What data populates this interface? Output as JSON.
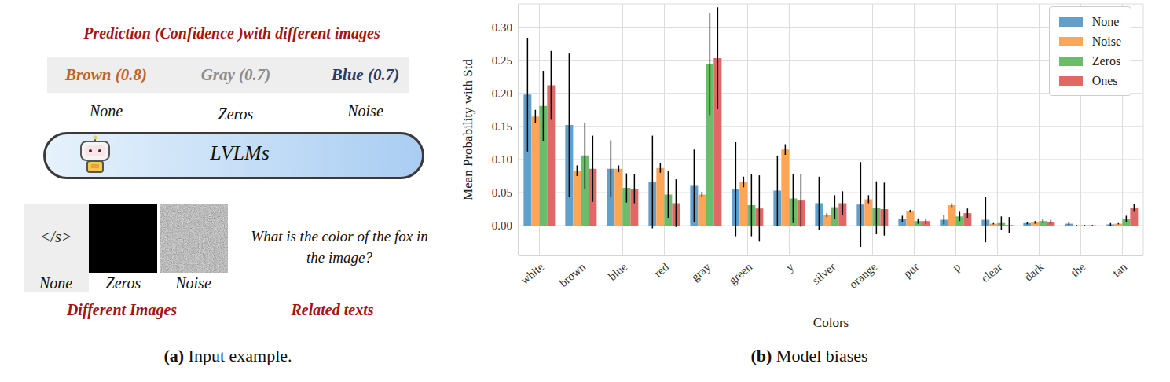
{
  "diagram": {
    "title": "Prediction (Confidence )with different images",
    "predictions": [
      {
        "text": "Brown (0.8)",
        "color": "#c0632b",
        "input": "None"
      },
      {
        "text": "Gray (0.7)",
        "color": "#8c8c8c",
        "input": "Zeros"
      },
      {
        "text": "Blue (0.7)",
        "color": "#2b3a67",
        "input": "Noise"
      }
    ],
    "model": "LVLMs",
    "images": [
      {
        "name": "None",
        "content": "</s>"
      },
      {
        "name": "Zeros"
      },
      {
        "name": "Noise"
      }
    ],
    "question": "What is the color of the fox in the image?",
    "images_label": "Different Images",
    "text_label": "Related texts",
    "caption": {
      "tag": "(a)",
      "text": "Input example."
    }
  },
  "chart_data": {
    "type": "bar",
    "caption": {
      "tag": "(b)",
      "text": "Model biases"
    },
    "x_label": "Colors",
    "y_label": "Mean Probability with Std",
    "categories": [
      "white",
      "brown",
      "blue",
      "red",
      "gray",
      "green",
      "y",
      "silver",
      "orange",
      "pur",
      "p",
      "clear",
      "dark",
      "the",
      "tan"
    ],
    "series": [
      {
        "name": "None",
        "color": "#62a0cb",
        "values": [
          0.198,
          0.152,
          0.086,
          0.066,
          0.06,
          0.055,
          0.053,
          0.034,
          0.032,
          0.01,
          0.009,
          0.009,
          0.004,
          0.003,
          0.002
        ],
        "std": [
          0.086,
          0.108,
          0.043,
          0.07,
          0.055,
          0.071,
          0.053,
          0.04,
          0.064,
          0.005,
          0.007,
          0.034,
          0.002,
          0.002,
          0.002
        ]
      },
      {
        "name": "Noise",
        "color": "#ffa556",
        "values": [
          0.165,
          0.083,
          0.086,
          0.087,
          0.047,
          0.066,
          0.115,
          0.016,
          0.04,
          0.022,
          0.031,
          0.003,
          0.005,
          0.0005,
          0.003
        ],
        "std": [
          0.01,
          0.008,
          0.005,
          0.007,
          0.004,
          0.008,
          0.008,
          0.003,
          0.006,
          0.002,
          0.003,
          0.001,
          0.002,
          0.0005,
          0.001
        ]
      },
      {
        "name": "Zeros",
        "color": "#6bbc6b",
        "values": [
          0.181,
          0.106,
          0.057,
          0.047,
          0.244,
          0.031,
          0.041,
          0.028,
          0.027,
          0.007,
          0.014,
          0.004,
          0.007,
          0.0005,
          0.01
        ],
        "std": [
          0.053,
          0.05,
          0.022,
          0.035,
          0.077,
          0.047,
          0.037,
          0.018,
          0.04,
          0.004,
          0.007,
          0.01,
          0.003,
          0.0005,
          0.005
        ]
      },
      {
        "name": "Ones",
        "color": "#e26868",
        "values": [
          0.212,
          0.086,
          0.056,
          0.034,
          0.253,
          0.026,
          0.038,
          0.034,
          0.025,
          0.007,
          0.019,
          0.001,
          0.006,
          0.0005,
          0.027
        ],
        "std": [
          0.052,
          0.05,
          0.022,
          0.036,
          0.077,
          0.05,
          0.04,
          0.018,
          0.04,
          0.004,
          0.007,
          0.012,
          0.003,
          0.0005,
          0.006
        ]
      }
    ],
    "ylim": [
      -0.045,
      0.335
    ],
    "yticks": [
      {
        "value": 0,
        "label": "0.00"
      },
      0.05,
      {
        "value": 0.1,
        "label": "0.10"
      },
      0.15,
      {
        "value": 0.2,
        "label": "0.20"
      },
      0.25,
      {
        "value": 0.3,
        "label": "0.30"
      }
    ],
    "grid": true,
    "legend": "upper right"
  }
}
